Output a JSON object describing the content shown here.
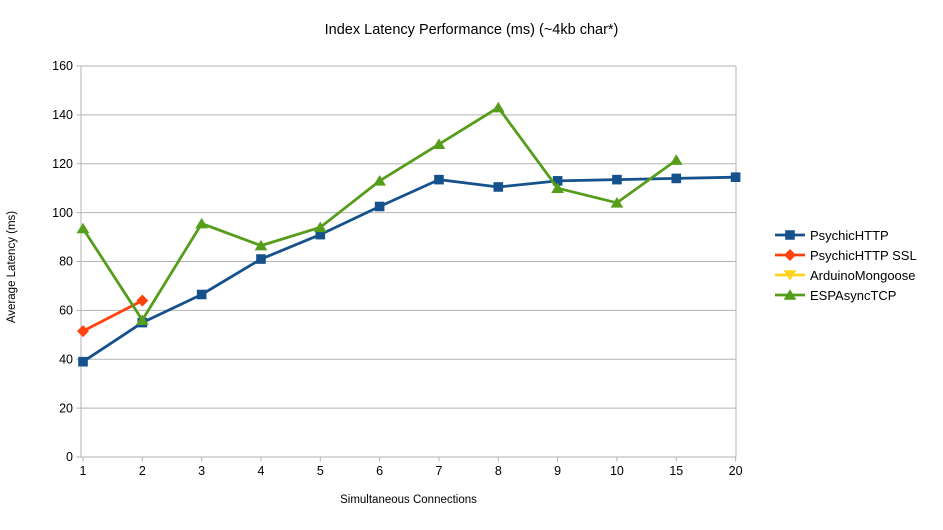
{
  "chart_data": {
    "type": "line",
    "title": "Index Latency Performance (ms) (~4kb char*)",
    "xlabel": "Simultaneous Connections",
    "ylabel": "Average Latency (ms)",
    "categories": [
      "1",
      "2",
      "3",
      "4",
      "5",
      "6",
      "7",
      "8",
      "9",
      "10",
      "15",
      "20"
    ],
    "ylim": [
      0,
      160
    ],
    "ytick_step": 20,
    "grid": "horizontal",
    "legend_position": "right",
    "colors": {
      "axis": "#b3b3b3",
      "grid": "#b3b3b3",
      "text": "#000000",
      "background": "#ffffff"
    },
    "series": [
      {
        "name": "PsychicHTTP",
        "color": "#15518c",
        "marker": "square",
        "values": [
          39,
          55,
          66.5,
          81,
          91,
          102.5,
          113.5,
          110.5,
          113,
          113.5,
          114,
          114.5
        ]
      },
      {
        "name": "PsychicHTTP SSL",
        "color": "#ff420e",
        "marker": "diamond",
        "values": [
          51.5,
          64,
          null,
          null,
          null,
          null,
          null,
          null,
          null,
          null,
          null,
          null
        ]
      },
      {
        "name": "ArduinoMongoose",
        "color": "#ffd320",
        "marker": "triangle-down",
        "values": [
          null,
          null,
          null,
          null,
          null,
          null,
          null,
          null,
          null,
          null,
          null,
          null
        ]
      },
      {
        "name": "ESPAsyncTCP",
        "color": "#579d1c",
        "marker": "triangle-up",
        "values": [
          93.5,
          56,
          95.5,
          86.5,
          94,
          113,
          128,
          143,
          110,
          104,
          121.5,
          null
        ]
      }
    ]
  }
}
